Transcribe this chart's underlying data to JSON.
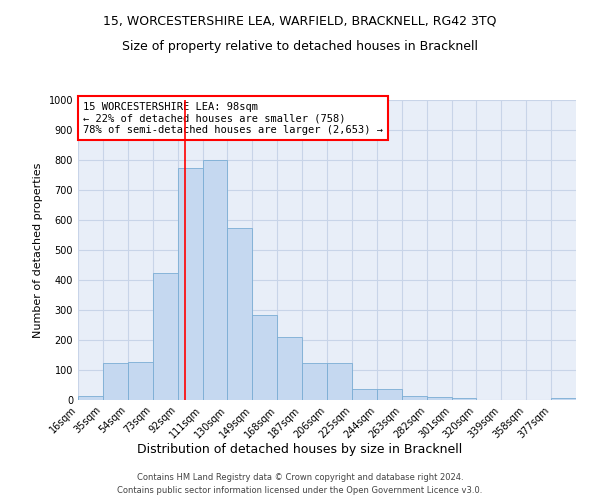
{
  "title": "15, WORCESTERSHIRE LEA, WARFIELD, BRACKNELL, RG42 3TQ",
  "subtitle": "Size of property relative to detached houses in Bracknell",
  "xlabel": "Distribution of detached houses by size in Bracknell",
  "ylabel": "Number of detached properties",
  "footer_line1": "Contains HM Land Registry data © Crown copyright and database right 2024.",
  "footer_line2": "Contains public sector information licensed under the Open Government Licence v3.0.",
  "annotation_line1": "15 WORCESTERSHIRE LEA: 98sqm",
  "annotation_line2": "← 22% of detached houses are smaller (758)",
  "annotation_line3": "78% of semi-detached houses are larger (2,653) →",
  "bar_color": "#c5d8f0",
  "bar_edge_color": "#7aadd4",
  "grid_color": "#c8d4e8",
  "background_color": "#e8eef8",
  "ylim": [
    0,
    1000
  ],
  "yticks": [
    0,
    100,
    200,
    300,
    400,
    500,
    600,
    700,
    800,
    900,
    1000
  ],
  "bins": [
    16,
    35,
    54,
    73,
    92,
    111,
    130,
    149,
    168,
    187,
    206,
    225,
    244,
    263,
    282,
    301,
    320,
    339,
    358,
    377,
    396
  ],
  "counts": [
    15,
    125,
    128,
    425,
    775,
    800,
    575,
    285,
    210,
    125,
    125,
    38,
    38,
    12,
    9,
    8,
    0,
    0,
    0,
    8
  ],
  "vline_x": 98,
  "title_fontsize": 9,
  "subtitle_fontsize": 9,
  "ylabel_fontsize": 8,
  "xlabel_fontsize": 9,
  "tick_fontsize": 7,
  "annotation_fontsize": 7.5,
  "footer_fontsize": 6
}
